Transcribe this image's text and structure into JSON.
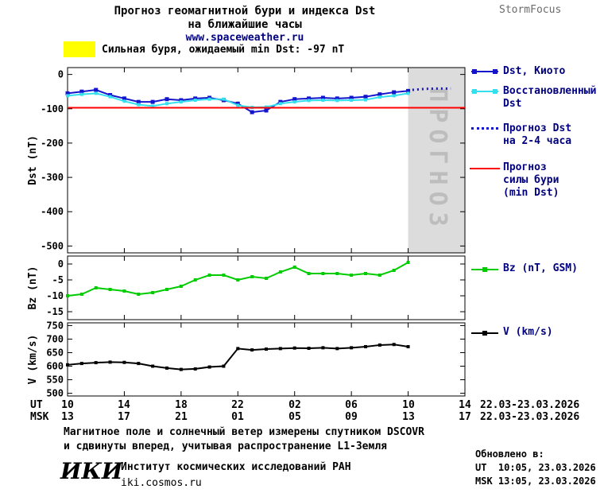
{
  "colors": {
    "dst_kyoto": "#1414cd",
    "restored": "#33e0ee",
    "forecast": "#1414cd",
    "storm_level": "#ff0000",
    "bz": "#00cc00",
    "v": "#000000",
    "alert_swatch": "#ffff00",
    "band": "#dcdcdc",
    "band_label": "#bdbdbd",
    "legend_text": "#000080",
    "brand_text": "#6b6b6b",
    "link": "#000080"
  },
  "header": {
    "title_line1": "Прогноз геомагнитной бури и индекса Dst",
    "title_line2": "на ближайшие часы",
    "site": "www.spaceweather.ru",
    "brand": "StormFocus"
  },
  "alert": {
    "text": "Сильная буря, ожидаемый min Dst: -97 nT"
  },
  "legend": {
    "dst_kyoto": "Dst, Киото",
    "restored_l1": "Восстановленный",
    "restored_l2": "Dst",
    "forecast_l1": "Прогноз Dst",
    "forecast_l2": "на 2-4 часа",
    "storm_l1": "Прогноз",
    "storm_l2": "силы бури",
    "storm_l3": "(min Dst)",
    "bz": "Bz (nT, GSM)",
    "v": "V (km/s)"
  },
  "xaxis": {
    "ut_label": "UT",
    "msk_label": "MSK",
    "ut_ticks": [
      "10",
      "14",
      "18",
      "22",
      "02",
      "06",
      "10",
      "14"
    ],
    "msk_ticks": [
      "13",
      "17",
      "21",
      "01",
      "05",
      "09",
      "13",
      "17"
    ],
    "ut_dates": "22.03-23.03.2026",
    "msk_dates": "22.03-23.03.2026"
  },
  "footer": {
    "info_line1": "Магнитное поле и солнечный ветер измерены спутником DSCOVR",
    "info_line2": "и сдвинуты вперед, учитывая распространение L1-Земля",
    "updated_label": "Обновлено в:",
    "updated_ut": "UT  10:05, 23.03.2026",
    "updated_msk": "MSK 13:05, 23.03.2026",
    "logo": "ИКИ",
    "institute": "Институт космических исследований РАН",
    "site": "iki.cosmos.ru"
  },
  "chart_data": [
    {
      "id": "dst",
      "type": "line",
      "title": "Прогноз геомагнитной бури и индекса Dst на ближайшие часы",
      "ylabel": "Dst (nT)",
      "ylim": [
        -520,
        20
      ],
      "yticks": [
        0,
        -100,
        -200,
        -300,
        -400,
        -500
      ],
      "xlim": [
        0,
        28
      ],
      "xticks": [
        0,
        4,
        8,
        12,
        16,
        20,
        24,
        28
      ],
      "forecast_band_x": [
        24,
        28
      ],
      "band_label": "ПРОГНОЗ",
      "storm_min_dst": -97,
      "series": [
        {
          "name": "Dst, Киото",
          "color": "#1414cd",
          "marker": "square",
          "marker_size": 5,
          "x_start": 0,
          "x_step": 1,
          "values": [
            -55,
            -50,
            -45,
            -60,
            -70,
            -80,
            -80,
            -72,
            -75,
            -70,
            -68,
            -75,
            -85,
            -110,
            -105,
            -80,
            -72,
            -70,
            -68,
            -70,
            -68,
            -65,
            -58,
            -52,
            -48
          ]
        },
        {
          "name": "Восстановленный Dst",
          "color": "#33e0ee",
          "marker": "square",
          "marker_size": 4,
          "x_start": 0,
          "x_step": 1,
          "values": [
            -62,
            -58,
            -55,
            -65,
            -78,
            -88,
            -92,
            -85,
            -80,
            -75,
            -72,
            -72,
            -90,
            -96,
            -95,
            -85,
            -80,
            -76,
            -75,
            -76,
            -75,
            -74,
            -66,
            -62,
            -55
          ]
        },
        {
          "name": "Прогноз Dst на 2-4 часа",
          "color": "#1414cd",
          "style": "dotted",
          "x": [
            24.3,
            25.2,
            26.1,
            27.0
          ],
          "values": [
            -45,
            -42,
            -41,
            -41
          ]
        },
        {
          "name": "Прогноз силы бури (min Dst)",
          "color": "#ff0000",
          "style": "hline",
          "value": -97
        }
      ]
    },
    {
      "id": "bz",
      "type": "line",
      "ylabel": "Bz (nT)",
      "ylim": [
        -17.5,
        2.5
      ],
      "yticks": [
        0,
        -5,
        -10,
        -15
      ],
      "xlim": [
        0,
        28
      ],
      "xticks": [
        0,
        4,
        8,
        12,
        16,
        20,
        24,
        28
      ],
      "series": [
        {
          "name": "Bz (nT, GSM)",
          "color": "#00cc00",
          "marker": "square",
          "marker_size": 4,
          "x_start": 0,
          "x_step": 1,
          "values": [
            -10,
            -9.5,
            -7.5,
            -8,
            -8.5,
            -9.5,
            -9,
            -8,
            -7,
            -5,
            -3.5,
            -3.5,
            -5,
            -4,
            -4.5,
            -2.5,
            -1,
            -3,
            -3,
            -3,
            -3.5,
            -3,
            -3.5,
            -2,
            0.5
          ]
        }
      ]
    },
    {
      "id": "v",
      "type": "line",
      "ylabel": "V (km/s)",
      "ylim": [
        490,
        760
      ],
      "yticks": [
        750,
        700,
        650,
        600,
        550,
        500
      ],
      "xlim": [
        0,
        28
      ],
      "xticks": [
        0,
        4,
        8,
        12,
        16,
        20,
        24,
        28
      ],
      "series": [
        {
          "name": "V (km/s)",
          "color": "#000000",
          "marker": "square",
          "marker_size": 4,
          "x_start": 0,
          "x_step": 1,
          "values": [
            605,
            610,
            613,
            615,
            614,
            610,
            600,
            593,
            588,
            590,
            597,
            600,
            665,
            660,
            663,
            665,
            667,
            666,
            668,
            665,
            668,
            672,
            678,
            680,
            672
          ]
        }
      ]
    }
  ]
}
